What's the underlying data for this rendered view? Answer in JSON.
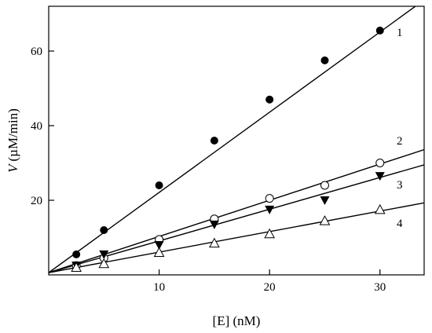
{
  "chart_data": {
    "type": "scatter",
    "title": "",
    "xlabel": "[E] (nM)",
    "ylabel_var": "V",
    "ylabel_units": "(µM/min)",
    "xlim": [
      0,
      34
    ],
    "ylim": [
      0,
      72
    ],
    "x_ticks": [
      10,
      20,
      30
    ],
    "y_ticks": [
      20,
      40,
      60
    ],
    "grid": false,
    "legend": "none",
    "series": [
      {
        "name": "1",
        "marker": "filled-circle",
        "x": [
          2.5,
          5,
          10,
          15,
          20,
          25,
          30
        ],
        "y": [
          5.5,
          12,
          24,
          36,
          47,
          57.5,
          65.5
        ],
        "fit": {
          "slope": 2.15,
          "intercept": 0.6
        }
      },
      {
        "name": "2",
        "marker": "open-circle",
        "x": [
          2.5,
          5,
          10,
          15,
          20,
          25,
          30
        ],
        "y": [
          2.5,
          4.5,
          9.5,
          15,
          20.5,
          24,
          30
        ],
        "fit": {
          "slope": 0.97,
          "intercept": 0.6
        }
      },
      {
        "name": "3",
        "marker": "filled-triangle-down",
        "x": [
          2.5,
          5,
          10,
          15,
          20,
          25,
          30
        ],
        "y": [
          2.5,
          5.5,
          8,
          13.5,
          17.5,
          20,
          26.5
        ],
        "fit": {
          "slope": 0.85,
          "intercept": 0.6
        }
      },
      {
        "name": "4",
        "marker": "open-triangle-up",
        "x": [
          2.5,
          5,
          10,
          15,
          20,
          25,
          30
        ],
        "y": [
          2,
          3,
          6,
          8.5,
          11,
          14.5,
          17.5
        ],
        "fit": {
          "slope": 0.55,
          "intercept": 0.6
        }
      }
    ]
  }
}
